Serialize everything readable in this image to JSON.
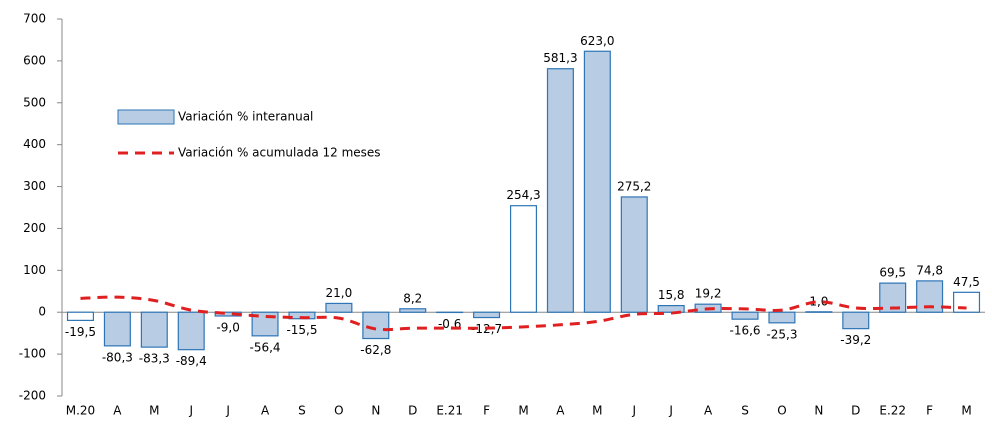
{
  "chart_data": {
    "type": "bar",
    "categories": [
      "M.20",
      "A",
      "M",
      "J",
      "J",
      "A",
      "S",
      "O",
      "N",
      "D",
      "E.21",
      "F",
      "M",
      "A",
      "M",
      "J",
      "J",
      "A",
      "S",
      "O",
      "N",
      "D",
      "E.22",
      "F",
      "M"
    ],
    "series": [
      {
        "name": "Variación % interanual",
        "type": "bar",
        "color": "#b8cce4",
        "edge_color": "#2e75b6",
        "colors": [
          "#ffffff",
          "#b8cce4",
          "#b8cce4",
          "#b8cce4",
          "#b8cce4",
          "#b8cce4",
          "#b8cce4",
          "#b8cce4",
          "#b8cce4",
          "#b8cce4",
          "#b8cce4",
          "#b8cce4",
          "#ffffff",
          "#b8cce4",
          "#b8cce4",
          "#b8cce4",
          "#b8cce4",
          "#b8cce4",
          "#b8cce4",
          "#b8cce4",
          "#b8cce4",
          "#b8cce4",
          "#b8cce4",
          "#b8cce4",
          "#ffffff"
        ],
        "values": [
          -19.5,
          -80.3,
          -83.3,
          -89.4,
          -9.0,
          -56.4,
          -15.5,
          21.0,
          -62.8,
          8.2,
          -0.6,
          -12.7,
          254.3,
          581.3,
          623.0,
          275.2,
          15.8,
          19.2,
          -16.6,
          -25.3,
          1.0,
          -39.2,
          69.5,
          74.8,
          47.5
        ],
        "value_labels": [
          "-19,5",
          "-80,3",
          "-83,3",
          "-89,4",
          "-9,0",
          "-56,4",
          "-15,5",
          "21,0",
          "-62,8",
          "8,2",
          "-0,6",
          "-12,7",
          "254,3",
          "581,3",
          "623,0",
          "275,2",
          "15,8",
          "19,2",
          "-16,6",
          "-25,3",
          "1,0",
          "-39,2",
          "69,5",
          "74,8",
          "47,5"
        ]
      },
      {
        "name": "Variación % acumulada 12 meses",
        "type": "line",
        "color": "#e02020",
        "dashed": true,
        "values": [
          33,
          36,
          28,
          5,
          -3,
          -10,
          -13,
          -14,
          -40,
          -38,
          -38,
          -38,
          -35,
          -30,
          -22,
          -5,
          -2,
          8,
          8,
          5,
          25,
          10,
          10,
          13,
          10
        ]
      }
    ],
    "ylim": [
      -200,
      700
    ],
    "yticks": [
      -200,
      -100,
      0,
      100,
      200,
      300,
      400,
      500,
      600,
      700
    ]
  }
}
